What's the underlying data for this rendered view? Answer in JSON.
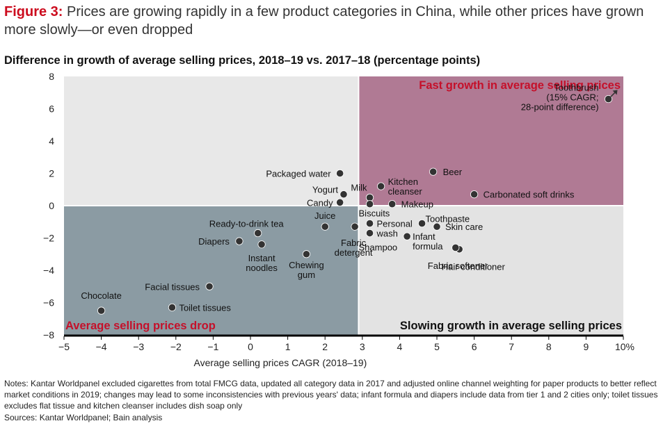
{
  "figure": {
    "label": "Figure 3:",
    "title": "Prices are growing rapidly in a few product categories in China, while other prices have grown more slowly—or even dropped"
  },
  "chart_title": "Difference in growth of average selling prices, 2018–19 vs. 2017–18 (percentage points)",
  "notes": "Notes: Kantar Worldpanel excluded cigarettes from total FMCG data, updated all category data in 2017 and adjusted online channel weighting for paper products to better reflect market conditions in 2019; changes may lead to some inconsistencies with previous years' data; infant formula and diapers include data from tier 1 and 2 cities only; toilet tissues excludes flat tissue and kitchen cleanser includes dish soap only",
  "sources": "Sources: Kantar Worldpanel; Bain analysis",
  "colors": {
    "fast_growth": "#b07a94",
    "price_drop": "#8b9ba3",
    "neutral": "#e3e3e3",
    "fast_growth_label": "#c5102a",
    "drop_label": "#c5102a",
    "slowing_label": "#111111",
    "point": "#333333"
  },
  "chart_data": {
    "type": "scatter",
    "xlabel": "Average selling prices CAGR (2018–19)",
    "ylabel": "",
    "xlim": [
      -5,
      10
    ],
    "ylim": [
      -8,
      8
    ],
    "x_ticks": [
      "−5",
      "−4",
      "−3",
      "−2",
      "−1",
      "0",
      "1",
      "2",
      "3",
      "4",
      "5",
      "6",
      "7",
      "8",
      "9",
      "10%"
    ],
    "y_ticks": [
      "8",
      "6",
      "4",
      "2",
      "0",
      "−2",
      "−4",
      "−6",
      "−8"
    ],
    "divider_x": 2.9,
    "divider_y": 0,
    "quadrants": {
      "fast_growth": "Fast growth in average selling prices",
      "price_drop": "Average selling prices drop",
      "slowing_growth": "Slowing growth in average selling prices"
    },
    "points": [
      {
        "label": "Toothbrush\n(15% CAGR;\n28-point difference)",
        "x": 9.6,
        "y": 6.6
      },
      {
        "label": "Beer",
        "x": 4.9,
        "y": 2.1
      },
      {
        "label": "Packaged water",
        "x": 2.4,
        "y": 2.0
      },
      {
        "label": "Kitchen\ncleanser",
        "x": 3.5,
        "y": 1.2
      },
      {
        "label": "Milk",
        "x": 3.2,
        "y": 0.5
      },
      {
        "label": "Carbonated soft drinks",
        "x": 6.0,
        "y": 0.7
      },
      {
        "label": "Yogurt",
        "x": 2.5,
        "y": 0.7
      },
      {
        "label": "Candy",
        "x": 2.4,
        "y": 0.2
      },
      {
        "label": "Makeup",
        "x": 3.8,
        "y": 0.1
      },
      {
        "label": "Biscuits",
        "x": 3.2,
        "y": 0.1
      },
      {
        "label": "Juice",
        "x": 2.0,
        "y": -1.3
      },
      {
        "label": "Fabric\ndetergent",
        "x": 2.8,
        "y": -1.3
      },
      {
        "label": "Personal\nwash",
        "x": 3.2,
        "y": -1.1
      },
      {
        "label": "Shampoo",
        "x": 3.2,
        "y": -1.7
      },
      {
        "label": "Toothpaste",
        "x": 4.6,
        "y": -1.1
      },
      {
        "label": "Skin care",
        "x": 5.0,
        "y": -1.3
      },
      {
        "label": "Infant\nformula",
        "x": 4.2,
        "y": -1.9
      },
      {
        "label": "Fabric softener",
        "x": 5.6,
        "y": -2.7
      },
      {
        "label": "Hair conditioner",
        "x": 5.5,
        "y": -2.6
      },
      {
        "label": "Ready-to-drink tea",
        "x": 0.2,
        "y": -1.7
      },
      {
        "label": "Diapers",
        "x": -0.3,
        "y": -2.2
      },
      {
        "label": "Instant\nnoodles",
        "x": 0.3,
        "y": -2.4
      },
      {
        "label": "Chewing\ngum",
        "x": 1.5,
        "y": -3.0
      },
      {
        "label": "Facial tissues",
        "x": -1.1,
        "y": -5.0
      },
      {
        "label": "Chocolate",
        "x": -4.0,
        "y": -6.5
      },
      {
        "label": "Toilet tissues",
        "x": -2.1,
        "y": -6.3
      }
    ]
  }
}
